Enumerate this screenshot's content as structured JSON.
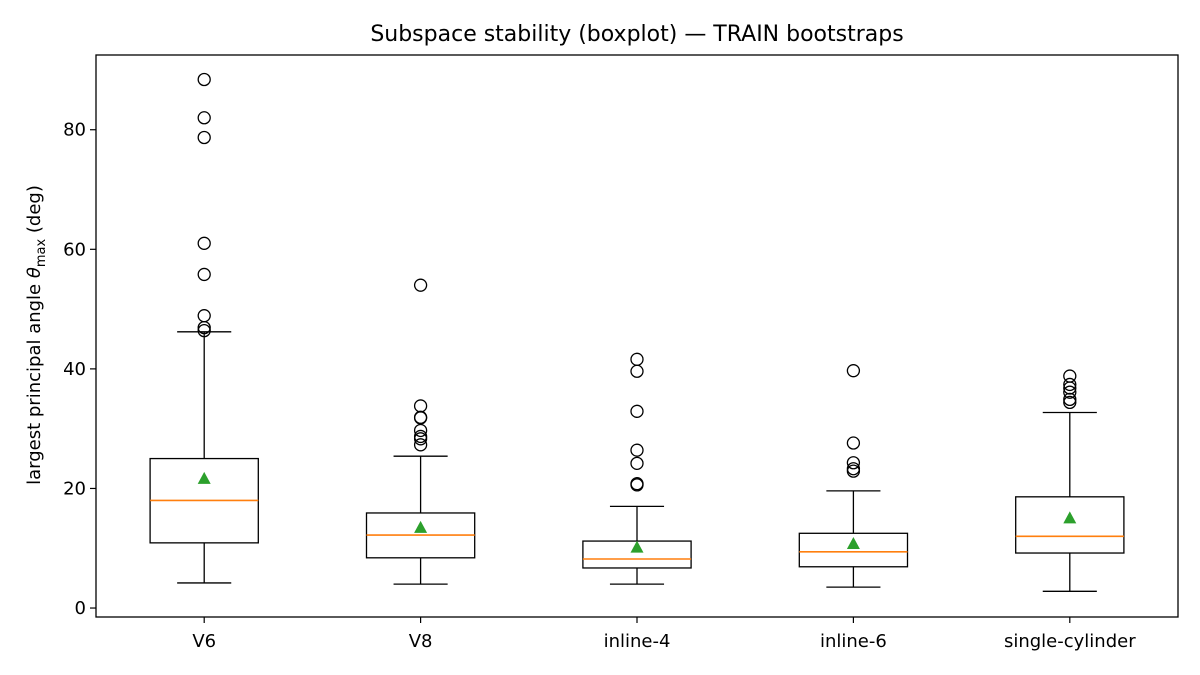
{
  "chart_data": {
    "type": "boxplot",
    "title": "Subspace stability (boxplot) — TRAIN bootstraps",
    "ylabel": {
      "prefix": "largest principal angle ",
      "symbol": "θ",
      "subscript": "max",
      "suffix": " (deg)"
    },
    "ylim": [
      -1.5,
      92.5
    ],
    "yticks": [
      0,
      20,
      40,
      60,
      80
    ],
    "grid": false,
    "categories": [
      "V6",
      "V8",
      "inline-4",
      "inline-6",
      "single-cylinder"
    ],
    "boxes": [
      {
        "category": "V6",
        "whisker_low": 4.2,
        "q1": 10.9,
        "median": 18.0,
        "q3": 25.0,
        "whisker_high": 46.2,
        "mean": 21.6,
        "outliers": [
          88.4,
          82.0,
          78.7,
          61.0,
          55.8,
          48.9,
          46.9,
          46.4
        ]
      },
      {
        "category": "V8",
        "whisker_low": 4.0,
        "q1": 8.4,
        "median": 12.2,
        "q3": 15.9,
        "whisker_high": 25.4,
        "mean": 13.4,
        "outliers": [
          54.0,
          33.8,
          31.9,
          31.8,
          29.7,
          28.7,
          28.3,
          27.3
        ]
      },
      {
        "category": "inline-4",
        "whisker_low": 4.0,
        "q1": 6.7,
        "median": 8.2,
        "q3": 11.2,
        "whisker_high": 17.0,
        "mean": 10.1,
        "outliers": [
          41.6,
          39.6,
          32.9,
          26.4,
          24.2,
          20.8,
          20.6
        ]
      },
      {
        "category": "inline-6",
        "whisker_low": 3.5,
        "q1": 6.9,
        "median": 9.4,
        "q3": 12.5,
        "whisker_high": 19.6,
        "mean": 10.7,
        "outliers": [
          39.7,
          27.6,
          24.3,
          23.3,
          22.9
        ]
      },
      {
        "category": "single-cylinder",
        "whisker_low": 2.8,
        "q1": 9.2,
        "median": 12.0,
        "q3": 18.6,
        "whisker_high": 32.7,
        "mean": 15.0,
        "outliers": [
          38.8,
          37.4,
          36.8,
          36.1,
          34.9,
          34.4
        ]
      }
    ],
    "colors": {
      "box": "#000000",
      "median": "#ff7f0e",
      "mean": "#2ca02c",
      "outlier_edge": "#000000"
    }
  }
}
